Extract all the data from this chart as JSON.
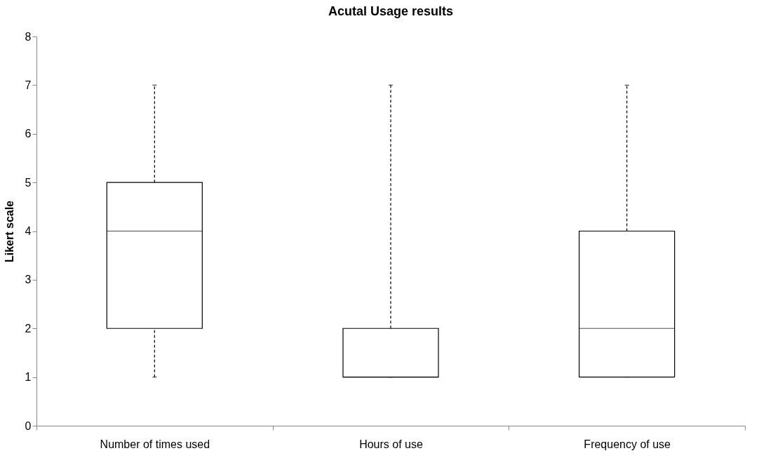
{
  "chart_data": {
    "type": "box",
    "title": "Acutal Usage results",
    "ylabel": "Likert scale",
    "categories": [
      "Number of times used",
      "Hours of use",
      "Frequency of use"
    ],
    "boxes": [
      {
        "low": 1,
        "q1": 2,
        "median": 4,
        "q3": 5,
        "high": 7
      },
      {
        "low": 1,
        "q1": 1,
        "median": 1,
        "q3": 2,
        "high": 7
      },
      {
        "low": 1,
        "q1": 1,
        "median": 2,
        "q3": 4,
        "high": 7
      }
    ],
    "ylim": [
      0,
      8
    ],
    "yticks": [
      0,
      1,
      2,
      3,
      4,
      5,
      6,
      7,
      8
    ]
  }
}
